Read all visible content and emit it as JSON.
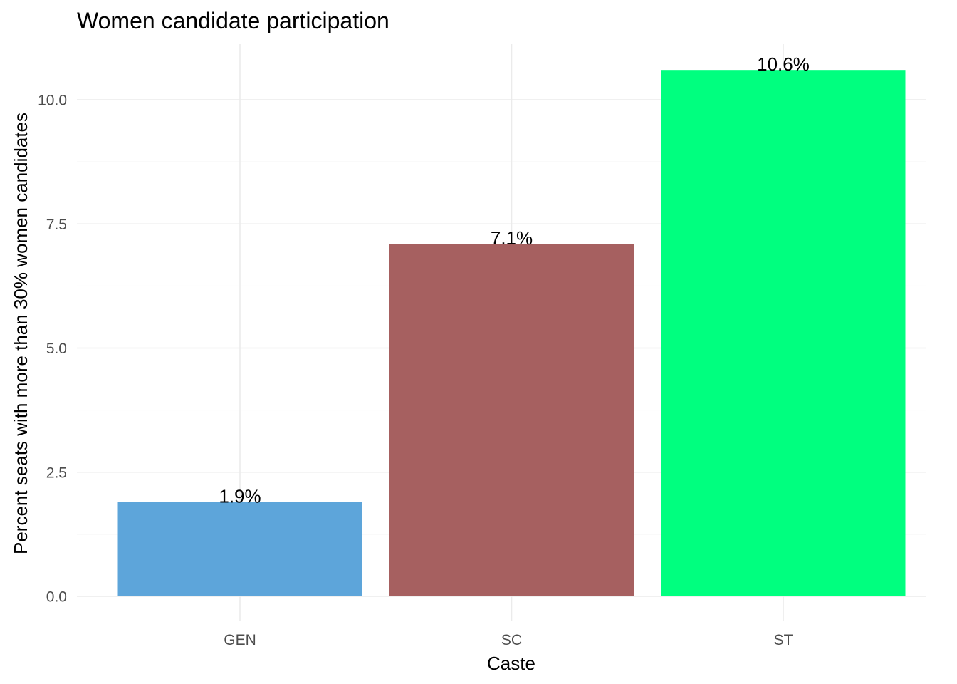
{
  "chart_data": {
    "type": "bar",
    "title": "Women candidate participation",
    "xlabel": "Caste",
    "ylabel": "Percent seats with more than 30% women candidates",
    "categories": [
      "GEN",
      "SC",
      "ST"
    ],
    "values": [
      1.9,
      7.1,
      10.6
    ],
    "data_labels": [
      "1.9%",
      "7.1%",
      "10.6%"
    ],
    "colors": [
      "#5DA5DA",
      "#A66060",
      "#00FF7F"
    ],
    "ylim": [
      0,
      11.1
    ],
    "yticks": [
      0,
      2.5,
      5,
      7.5,
      10
    ],
    "ytick_labels": [
      "0.0",
      "2.5",
      "5.0",
      "7.5",
      "10.0"
    ],
    "grid": true,
    "legend": "none"
  }
}
